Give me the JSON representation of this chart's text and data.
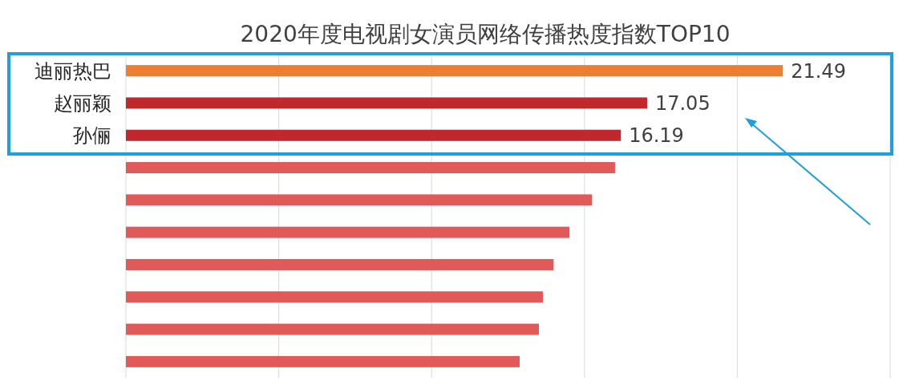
{
  "chart_data": {
    "type": "bar",
    "orientation": "horizontal",
    "title": "2020年度电视剧女演员网络传播热度指数TOP10",
    "categories": [
      "迪丽热巴",
      "赵丽颖",
      "孙俪",
      null,
      null,
      null,
      null,
      null,
      null,
      null
    ],
    "values": [
      21.49,
      17.05,
      16.19,
      16.0,
      15.25,
      14.51,
      13.99,
      13.64,
      13.51,
      12.88
    ],
    "colors": [
      "#ed7d31",
      "#c0282d",
      "#c0282d",
      "#e05a5a",
      "#e05a5a",
      "#e05a5a",
      "#e05a5a",
      "#e05a5a",
      "#e05a5a",
      "#e05a5a"
    ],
    "value_labels": [
      "21.49",
      "17.05",
      "16.19",
      null,
      null,
      null,
      null,
      null,
      null,
      null
    ],
    "xlim": [
      0,
      25
    ],
    "xticks": [
      {
        "value": 0,
        "label": null
      },
      {
        "value": 5,
        "label": null
      },
      {
        "value": 10,
        "label": null
      },
      {
        "value": 15,
        "label": null
      },
      {
        "value": 20,
        "label": null
      },
      {
        "value": 25,
        "label": null
      }
    ],
    "grid": "x"
  }
}
